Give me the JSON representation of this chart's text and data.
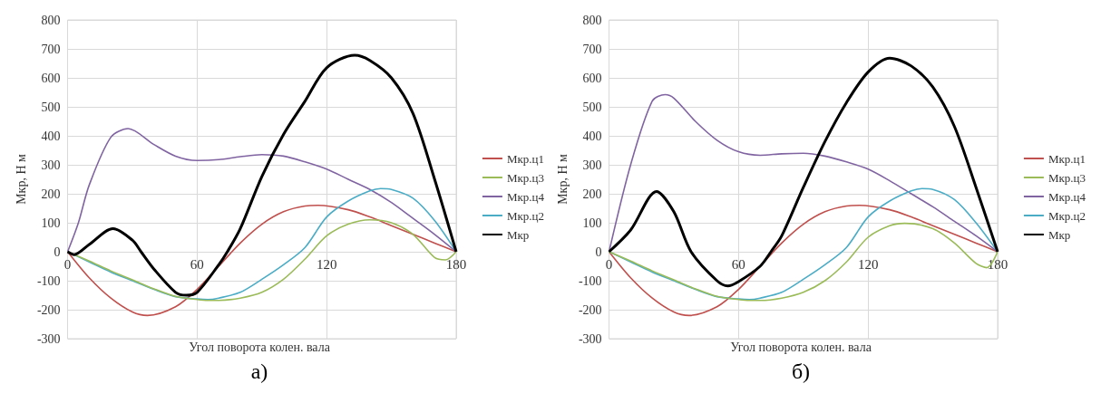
{
  "chart_data": [
    {
      "type": "line",
      "xlabel": "Угол поворота колен. вала",
      "ylabel": "Мкр, Н м",
      "xlim": [
        0,
        180
      ],
      "xticks": [
        0,
        60,
        120,
        180
      ],
      "ylim": [
        -300,
        800
      ],
      "yticks": [
        -300,
        -200,
        -100,
        0,
        100,
        200,
        300,
        400,
        500,
        600,
        700,
        800
      ],
      "grid": true,
      "legend": "right",
      "marker": "none",
      "annotations": [
        "а)"
      ],
      "series": [
        {
          "name": "Мкр.ц1",
          "color": "#c0504d",
          "x": [
            0,
            10,
            20,
            30,
            37,
            50,
            60,
            70,
            80,
            90,
            100,
            110,
            116,
            130,
            140,
            150,
            160,
            170,
            180
          ],
          "values": [
            0,
            -90,
            -160,
            -208,
            -220,
            -190,
            -130,
            -50,
            30,
            95,
            138,
            158,
            160,
            145,
            120,
            90,
            60,
            30,
            0
          ]
        },
        {
          "name": "Мкр.ц3",
          "color": "#9bbb59",
          "x": [
            0,
            10,
            20,
            30,
            40,
            50,
            60,
            65,
            70,
            80,
            90,
            100,
            110,
            120,
            130,
            140,
            150,
            160,
            170,
            175,
            180
          ],
          "values": [
            0,
            -32,
            -66,
            -97,
            -128,
            -154,
            -165,
            -168,
            -168,
            -160,
            -140,
            -95,
            -25,
            55,
            95,
            110,
            100,
            60,
            -20,
            -28,
            0
          ]
        },
        {
          "name": "Мкр.ц4",
          "color": "#8064a2",
          "x": [
            0,
            5,
            10,
            20,
            28,
            40,
            50,
            60,
            70,
            80,
            90,
            100,
            110,
            120,
            130,
            140,
            150,
            160,
            170,
            180
          ],
          "values": [
            0,
            100,
            230,
            395,
            425,
            370,
            330,
            315,
            318,
            328,
            335,
            330,
            310,
            285,
            250,
            215,
            170,
            115,
            60,
            0
          ]
        },
        {
          "name": "Мкр.ц2",
          "color": "#4bacc6",
          "x": [
            0,
            10,
            20,
            30,
            40,
            50,
            60,
            65,
            70,
            80,
            90,
            100,
            110,
            120,
            130,
            140,
            145,
            150,
            160,
            170,
            180
          ],
          "values": [
            0,
            -35,
            -70,
            -100,
            -130,
            -155,
            -163,
            -165,
            -160,
            -140,
            -95,
            -45,
            15,
            120,
            175,
            210,
            218,
            215,
            185,
            108,
            0
          ]
        },
        {
          "name": "Мкр",
          "color": "#000000",
          "x": [
            0,
            3,
            10,
            21,
            30,
            34,
            40,
            50,
            55,
            60,
            70,
            74,
            80,
            90,
            100,
            110,
            120,
            133,
            140,
            150,
            160,
            170,
            180
          ],
          "values": [
            0,
            -10,
            25,
            80,
            40,
            0,
            -60,
            -140,
            -150,
            -140,
            -45,
            0,
            80,
            260,
            405,
            520,
            635,
            678,
            660,
            600,
            477,
            250,
            0
          ]
        }
      ]
    },
    {
      "type": "line",
      "xlabel": "Угол поворота колен. вала",
      "ylabel": "Мкр, Н м",
      "xlim": [
        0,
        180
      ],
      "xticks": [
        0,
        60,
        120,
        180
      ],
      "ylim": [
        -300,
        800
      ],
      "yticks": [
        -300,
        -200,
        -100,
        0,
        100,
        200,
        300,
        400,
        500,
        600,
        700,
        800
      ],
      "grid": true,
      "legend": "right",
      "marker": "none",
      "annotations": [
        "б)"
      ],
      "series": [
        {
          "name": "Мкр.ц1",
          "color": "#c0504d",
          "x": [
            0,
            10,
            20,
            30,
            37,
            50,
            60,
            70,
            80,
            90,
            100,
            110,
            116,
            130,
            140,
            150,
            160,
            170,
            180
          ],
          "values": [
            0,
            -90,
            -160,
            -208,
            -220,
            -190,
            -130,
            -50,
            30,
            95,
            138,
            158,
            160,
            145,
            120,
            90,
            60,
            30,
            0
          ]
        },
        {
          "name": "Мкр.ц3",
          "color": "#9bbb59",
          "x": [
            0,
            10,
            20,
            30,
            40,
            50,
            60,
            65,
            70,
            80,
            90,
            100,
            110,
            120,
            130,
            137,
            150,
            160,
            170,
            175,
            180
          ],
          "values": [
            0,
            -32,
            -66,
            -97,
            -128,
            -154,
            -165,
            -168,
            -168,
            -160,
            -140,
            -100,
            -35,
            50,
            90,
            98,
            80,
            30,
            -40,
            -55,
            0
          ]
        },
        {
          "name": "Мкр.ц4",
          "color": "#8064a2",
          "x": [
            0,
            10,
            20,
            26,
            30,
            40,
            50,
            60,
            70,
            80,
            90,
            100,
            110,
            120,
            130,
            140,
            150,
            160,
            170,
            180
          ],
          "values": [
            0,
            300,
            520,
            542,
            530,
            450,
            385,
            345,
            333,
            338,
            340,
            330,
            310,
            285,
            245,
            200,
            155,
            105,
            55,
            0
          ]
        },
        {
          "name": "Мкр.ц2",
          "color": "#4bacc6",
          "x": [
            0,
            10,
            20,
            30,
            40,
            50,
            60,
            65,
            70,
            80,
            90,
            100,
            110,
            120,
            130,
            140,
            145,
            150,
            160,
            170,
            180
          ],
          "values": [
            0,
            -35,
            -70,
            -100,
            -130,
            -155,
            -163,
            -165,
            -160,
            -140,
            -95,
            -45,
            15,
            120,
            175,
            210,
            218,
            215,
            180,
            100,
            0
          ]
        },
        {
          "name": "Мкр",
          "color": "#000000",
          "x": [
            0,
            10,
            22,
            30,
            38,
            50,
            55,
            60,
            70,
            75,
            80,
            90,
            100,
            110,
            120,
            130,
            140,
            150,
            160,
            170,
            180
          ],
          "values": [
            0,
            75,
            208,
            138,
            0,
            -100,
            -118,
            -103,
            -50,
            0,
            55,
            222,
            380,
            515,
            620,
            668,
            641,
            568,
            432,
            222,
            0
          ]
        }
      ]
    }
  ]
}
